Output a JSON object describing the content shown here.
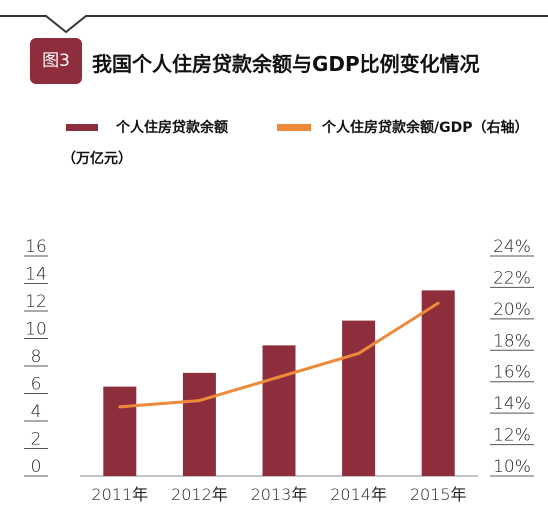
{
  "badge_text": "图3",
  "chart_data": {
    "type": "bar",
    "title": "我国个人住房贷款余额与GDP比例变化情况",
    "unit": "（万亿元）",
    "categories": [
      "2011年",
      "2012年",
      "2013年",
      "2014年",
      "2015年"
    ],
    "series": [
      {
        "name": "个人住房贷款余额",
        "type": "bar",
        "axis": "left",
        "color": "#8e2e3c",
        "values": [
          6.5,
          7.5,
          9.5,
          11.3,
          13.5
        ]
      },
      {
        "name": "个人住房贷款余额/GDP（右轴）",
        "type": "line",
        "axis": "right",
        "color": "#ec8a3a",
        "values": [
          14.4,
          14.8,
          16.3,
          17.8,
          21.0
        ]
      }
    ],
    "left_axis": {
      "ticks": [
        "0",
        "2",
        "4",
        "6",
        "8",
        "10",
        "12",
        "14",
        "16"
      ],
      "ylim": [
        0,
        16
      ]
    },
    "right_axis": {
      "ticks": [
        "10%",
        "12%",
        "14%",
        "16%",
        "18%",
        "20%",
        "22%",
        "24%"
      ],
      "ylim": [
        10,
        24
      ]
    },
    "legend_position": "top",
    "grid": false
  }
}
